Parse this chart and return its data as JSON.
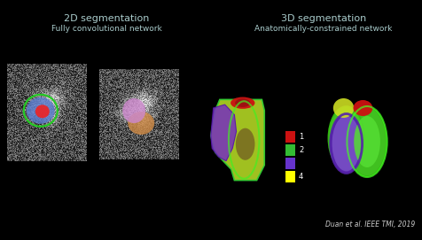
{
  "background_color": "#000000",
  "title_2d": "2D segmentation",
  "subtitle_2d": "Fully convolutional network",
  "title_3d": "3D segmentation",
  "subtitle_3d": "Anatomically-constrained network",
  "citation": "Duan et al. IEEE TMI, 2019",
  "title_color": "#aacccc",
  "citation_color": "#cccccc",
  "legend_colors_ordered": [
    "#ffff00",
    "#6633cc",
    "#33bb33",
    "#cc1111"
  ],
  "legend_labels": [
    "4",
    "",
    "2",
    "1"
  ]
}
